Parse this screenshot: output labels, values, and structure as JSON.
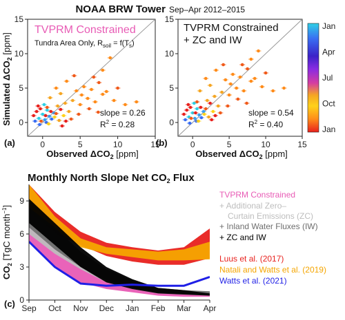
{
  "figure": {
    "title": "NOAA BRW Tower",
    "title_suffix": "Sep–Apr 2012–2015"
  },
  "panels": {
    "a": {
      "letter": "(a)",
      "label_main": "TVPRM Constrained",
      "label_sub1": "Tundra Area Only, R",
      "label_sub_sub1": "soil",
      "label_sub2": " = f(T",
      "label_sub_sub2": "s",
      "label_sub3": ")",
      "slope": "slope = 0.26",
      "r2_pre": "R",
      "r2_sup": "2",
      "r2_post": " = 0.28",
      "label_color": "#e85bb5"
    },
    "b": {
      "letter": "(b)",
      "label_line1": "TVPRM Constrained",
      "label_line2": "+ ZC and IW",
      "slope": "slope = 0.54",
      "r2_pre": "R",
      "r2_sup": "2",
      "r2_post": " = 0.40"
    },
    "c": {
      "letter": "(c)",
      "title_pre": "Monthly North Slope Net CO",
      "title_sub": "2",
      "title_post": " Flux",
      "ylabel_pre": "CO",
      "ylabel_sub": "2",
      "ylabel_post": " [TgC month",
      "ylabel_sup": "−1",
      "ylabel_end": "]"
    }
  },
  "axes_scatter": {
    "xlabel_pre": "Observed ΔCO",
    "xlabel_sub": "2",
    "xlabel_post": " [ppm]",
    "ylabel_pre": "Simulated ΔCO",
    "ylabel_sub": "2",
    "ylabel_post": " [ppm]"
  },
  "colorbar": {
    "labels": [
      "Jan",
      "Apr",
      "Jul",
      "Oct",
      "Jan"
    ],
    "stops": [
      "#2fd0e6",
      "#3a6ef2",
      "#3b22c8",
      "#8a2be2",
      "#d63ea0",
      "#f5a623",
      "#ffd21a",
      "#ff8c1a",
      "#e8211d"
    ]
  },
  "legend_c": {
    "items": [
      {
        "text": "TVPRM Constrained",
        "color": "#e85bb5"
      },
      {
        "text": "+ Additional Zero–",
        "color": "#bdbdbd"
      },
      {
        "text": "Curtain Emissions (ZC)",
        "color": "#bdbdbd"
      },
      {
        "text": "+ Inland Water Fluxes (IW)",
        "color": "#6e6e6e"
      },
      {
        "text": "+ ZC and IW",
        "color": "#000000"
      },
      {
        "text": "Luus et al. (2017)",
        "color": "#e8211d"
      },
      {
        "text": "Natali and Watts et al. (2019)",
        "color": "#f5a500"
      },
      {
        "text": "Watts et al. (2021)",
        "color": "#1f1fe6"
      }
    ]
  },
  "chart_data": [
    {
      "type": "scatter",
      "panel": "a",
      "title": "TVPRM Constrained",
      "xlabel": "Observed ΔCO2 [ppm]",
      "ylabel": "Simulated ΔCO2 [ppm]",
      "xlim": [
        -2,
        15
      ],
      "ylim": [
        -2,
        15
      ],
      "xticks": [
        0,
        5,
        10,
        15
      ],
      "yticks": [
        0,
        5,
        10,
        15
      ],
      "reference_line": "1:1",
      "slope": 0.26,
      "r2": 0.28,
      "points": [
        [
          -1.2,
          1.0,
          "Jan"
        ],
        [
          -0.8,
          1.6,
          "Jan"
        ],
        [
          -0.5,
          0.6,
          "Feb"
        ],
        [
          -0.3,
          2.0,
          "Jan"
        ],
        [
          0.0,
          1.2,
          "Feb"
        ],
        [
          0.3,
          0.4,
          "Mar"
        ],
        [
          0.6,
          1.8,
          "Feb"
        ],
        [
          0.9,
          0.9,
          "Mar"
        ],
        [
          -0.6,
          2.4,
          "Jan"
        ],
        [
          0.2,
          2.6,
          "Feb"
        ],
        [
          -1.0,
          0.2,
          "Apr"
        ],
        [
          -0.4,
          -0.3,
          "Apr"
        ],
        [
          0.5,
          0.0,
          "Apr"
        ],
        [
          1.2,
          0.5,
          "Apr"
        ],
        [
          1.5,
          1.4,
          "Mar"
        ],
        [
          0.8,
          -0.2,
          "Sep"
        ],
        [
          1.6,
          0.8,
          "Sep"
        ],
        [
          2.2,
          0.3,
          "Oct"
        ],
        [
          2.8,
          1.0,
          "Sep"
        ],
        [
          3.5,
          1.6,
          "Oct"
        ],
        [
          2.0,
          2.4,
          "Oct"
        ],
        [
          3.0,
          2.8,
          "Oct"
        ],
        [
          4.0,
          3.2,
          "Oct"
        ],
        [
          5.0,
          2.6,
          "Nov"
        ],
        [
          6.0,
          3.5,
          "Nov"
        ],
        [
          7.0,
          3.0,
          "Nov"
        ],
        [
          8.0,
          4.1,
          "Nov"
        ],
        [
          9.5,
          3.2,
          "Nov"
        ],
        [
          11.0,
          2.6,
          "Nov"
        ],
        [
          12.5,
          3.0,
          "Nov"
        ],
        [
          4.5,
          4.6,
          "Nov"
        ],
        [
          5.5,
          5.2,
          "Nov"
        ],
        [
          6.5,
          4.8,
          "Nov"
        ],
        [
          7.5,
          5.8,
          "Dec"
        ],
        [
          8.5,
          4.5,
          "Nov"
        ],
        [
          10.0,
          5.0,
          "Dec"
        ],
        [
          9.0,
          9.4,
          "Nov"
        ],
        [
          8.0,
          7.6,
          "Nov"
        ],
        [
          6.8,
          6.6,
          "Dec"
        ],
        [
          1.0,
          3.6,
          "Oct"
        ],
        [
          2.4,
          4.2,
          "Oct"
        ],
        [
          1.8,
          5.0,
          "Nov"
        ],
        [
          3.2,
          6.0,
          "Nov"
        ],
        [
          4.2,
          6.8,
          "Dec"
        ],
        [
          5.2,
          4.0,
          "Nov"
        ],
        [
          6.2,
          2.0,
          "Dec"
        ],
        [
          3.8,
          0.5,
          "Dec"
        ],
        [
          2.6,
          -0.5,
          "Jan"
        ],
        [
          4.8,
          1.2,
          "Dec"
        ],
        [
          7.4,
          1.5,
          "Dec"
        ],
        [
          -0.2,
          0.2,
          "Dec"
        ],
        [
          0.4,
          1.0,
          "Jan"
        ],
        [
          1.1,
          1.6,
          "Jan"
        ],
        [
          1.8,
          1.3,
          "Dec"
        ],
        [
          2.4,
          1.9,
          "Jan"
        ],
        [
          0.6,
          2.2,
          "Dec"
        ],
        [
          3.1,
          0.2,
          "Jan"
        ]
      ]
    },
    {
      "type": "scatter",
      "panel": "b",
      "title": "TVPRM Constrained + ZC and IW",
      "xlabel": "Observed ΔCO2 [ppm]",
      "ylabel": "",
      "xlim": [
        -2,
        15
      ],
      "ylim": [
        -2,
        15
      ],
      "xticks": [
        0,
        5,
        10,
        15
      ],
      "yticks": [
        0,
        5,
        10,
        15
      ],
      "reference_line": "1:1",
      "slope": 0.54,
      "r2": 0.4,
      "points": [
        [
          -1.2,
          1.2,
          "Jan"
        ],
        [
          -0.8,
          1.8,
          "Jan"
        ],
        [
          -0.5,
          0.8,
          "Feb"
        ],
        [
          -0.3,
          2.2,
          "Jan"
        ],
        [
          0.0,
          1.4,
          "Feb"
        ],
        [
          0.3,
          0.6,
          "Mar"
        ],
        [
          0.6,
          2.0,
          "Feb"
        ],
        [
          0.9,
          1.1,
          "Mar"
        ],
        [
          -0.6,
          2.6,
          "Jan"
        ],
        [
          0.2,
          2.8,
          "Feb"
        ],
        [
          -1.0,
          0.4,
          "Apr"
        ],
        [
          -0.4,
          -0.1,
          "Apr"
        ],
        [
          0.5,
          0.2,
          "Apr"
        ],
        [
          1.2,
          0.7,
          "Apr"
        ],
        [
          1.5,
          1.6,
          "Mar"
        ],
        [
          0.8,
          0.2,
          "Sep"
        ],
        [
          1.6,
          1.2,
          "Sep"
        ],
        [
          2.2,
          0.8,
          "Oct"
        ],
        [
          2.8,
          1.6,
          "Sep"
        ],
        [
          3.5,
          2.4,
          "Oct"
        ],
        [
          2.0,
          3.2,
          "Oct"
        ],
        [
          3.0,
          3.8,
          "Oct"
        ],
        [
          4.0,
          4.4,
          "Oct"
        ],
        [
          5.0,
          4.0,
          "Nov"
        ],
        [
          6.0,
          5.0,
          "Nov"
        ],
        [
          7.0,
          4.6,
          "Nov"
        ],
        [
          8.0,
          6.0,
          "Nov"
        ],
        [
          9.5,
          5.2,
          "Nov"
        ],
        [
          11.0,
          4.6,
          "Nov"
        ],
        [
          12.5,
          5.0,
          "Nov"
        ],
        [
          4.5,
          6.2,
          "Nov"
        ],
        [
          5.5,
          7.0,
          "Nov"
        ],
        [
          6.5,
          6.6,
          "Nov"
        ],
        [
          7.5,
          7.8,
          "Dec"
        ],
        [
          8.5,
          6.4,
          "Nov"
        ],
        [
          10.0,
          7.2,
          "Dec"
        ],
        [
          9.0,
          10.4,
          "Nov"
        ],
        [
          8.0,
          9.2,
          "Nov"
        ],
        [
          6.8,
          8.4,
          "Dec"
        ],
        [
          1.0,
          4.6,
          "Oct"
        ],
        [
          2.4,
          5.4,
          "Oct"
        ],
        [
          1.8,
          6.4,
          "Nov"
        ],
        [
          3.2,
          7.6,
          "Nov"
        ],
        [
          4.2,
          8.4,
          "Dec"
        ],
        [
          5.2,
          5.6,
          "Nov"
        ],
        [
          6.2,
          3.4,
          "Dec"
        ],
        [
          3.8,
          1.4,
          "Dec"
        ],
        [
          2.6,
          0.4,
          "Jan"
        ],
        [
          4.8,
          2.4,
          "Dec"
        ],
        [
          7.4,
          2.8,
          "Dec"
        ],
        [
          -0.2,
          0.6,
          "Dec"
        ],
        [
          0.4,
          1.4,
          "Jan"
        ],
        [
          1.1,
          2.2,
          "Jan"
        ],
        [
          1.8,
          2.0,
          "Dec"
        ],
        [
          2.4,
          2.8,
          "Jan"
        ],
        [
          0.6,
          3.0,
          "Dec"
        ],
        [
          3.1,
          1.0,
          "Jan"
        ]
      ]
    },
    {
      "type": "area",
      "panel": "c",
      "title": "Monthly North Slope Net CO2 Flux",
      "ylabel": "CO2 [TgC month−1]",
      "categories": [
        "Sep",
        "Oct",
        "Nov",
        "Dec",
        "Jan",
        "Feb",
        "Mar",
        "Apr"
      ],
      "ylim": [
        0,
        10.5
      ],
      "yticks": [
        0,
        3,
        6,
        9
      ],
      "series": [
        {
          "name": "Luus et al. (2017)",
          "kind": "band",
          "color": "#e8211d",
          "lower": [
            7.8,
            6.0,
            5.0,
            4.0,
            3.5,
            3.2,
            3.2,
            3.8
          ],
          "upper": [
            10.5,
            8.0,
            6.2,
            5.2,
            4.8,
            4.5,
            4.8,
            6.5
          ]
        },
        {
          "name": "Natali and Watts et al. (2019)",
          "kind": "band",
          "color": "#f5a500",
          "lower": [
            7.8,
            6.4,
            4.8,
            4.2,
            3.9,
            3.6,
            3.6,
            3.7
          ],
          "upper": [
            10.5,
            7.6,
            5.6,
            4.8,
            4.6,
            4.4,
            4.6,
            5.3
          ]
        },
        {
          "name": "TVPRM Constrained",
          "kind": "band",
          "color": "#e85bb5",
          "lower": [
            5.2,
            3.0,
            1.6,
            1.0,
            0.7,
            0.4,
            0.3,
            0.3
          ],
          "upper": [
            7.0,
            5.2,
            3.4,
            2.0,
            1.3,
            0.9,
            0.8,
            0.7
          ]
        },
        {
          "name": "+ Additional Zero–Curtain Emissions (ZC)",
          "kind": "band",
          "color": "#bdbdbd",
          "lower": [
            6.0,
            4.2,
            2.8,
            1.6,
            1.0,
            0.6,
            0.5,
            0.4
          ],
          "upper": [
            8.0,
            6.2,
            4.0,
            2.6,
            1.6,
            1.0,
            0.8,
            0.7
          ]
        },
        {
          "name": "+ Inland Water Fluxes (IW)",
          "kind": "band",
          "color": "#6e6e6e",
          "lower": [
            6.6,
            4.6,
            3.0,
            1.8,
            1.1,
            0.7,
            0.6,
            0.5
          ],
          "upper": [
            8.4,
            6.6,
            4.4,
            2.8,
            1.8,
            1.1,
            0.9,
            0.8
          ]
        },
        {
          "name": "+ ZC and IW",
          "kind": "band",
          "color": "#000000",
          "lower": [
            7.0,
            5.0,
            3.0,
            1.6,
            1.0,
            0.6,
            0.5,
            0.4
          ],
          "upper": [
            9.2,
            7.0,
            4.8,
            3.0,
            1.9,
            1.1,
            0.9,
            0.6
          ]
        },
        {
          "name": "Watts et al. (2021)",
          "kind": "line",
          "color": "#1f1fe6",
          "values": [
            5.3,
            3.0,
            1.5,
            1.3,
            1.4,
            1.3,
            1.3,
            2.1
          ]
        }
      ]
    }
  ]
}
